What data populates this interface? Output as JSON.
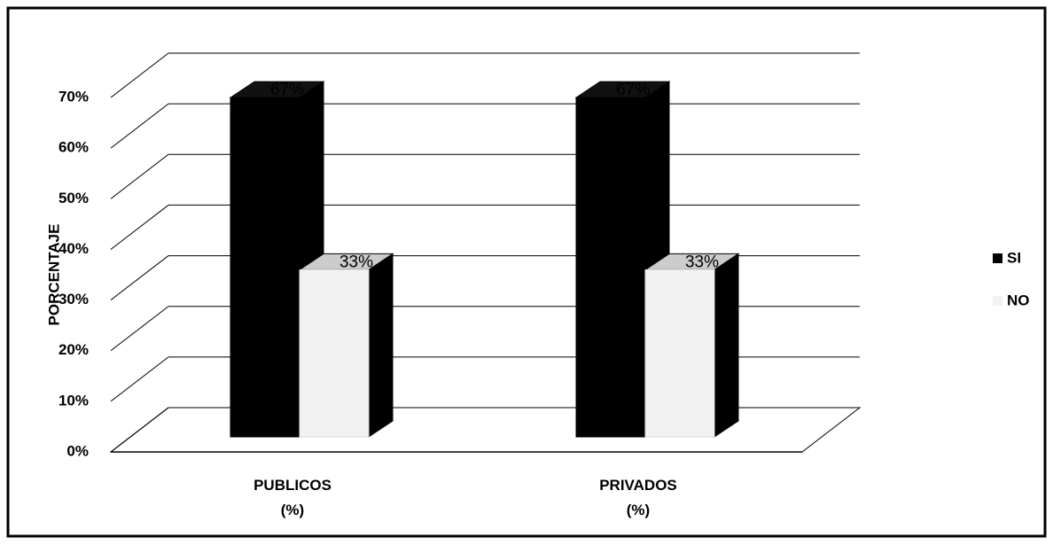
{
  "chart_data": {
    "type": "bar",
    "categories": [
      "PUBLICOS\n(%)",
      "PRIVADOS\n(%)"
    ],
    "series": [
      {
        "name": "SI",
        "color": "#000000",
        "values": [
          67,
          67
        ],
        "value_labels": [
          "67%",
          "67%"
        ]
      },
      {
        "name": "NO",
        "color": "#f2f2f2",
        "values": [
          33,
          33
        ],
        "value_labels": [
          "33%",
          "33%"
        ]
      }
    ],
    "ylabel": "PORCENTAJE",
    "ylim": [
      0,
      70
    ],
    "yticks": [
      {
        "value": 0,
        "label": "0%"
      },
      {
        "value": 10,
        "label": "10%"
      },
      {
        "value": 20,
        "label": "20%"
      },
      {
        "value": 30,
        "label": "30%"
      },
      {
        "value": 40,
        "label": "40%"
      },
      {
        "value": 50,
        "label": "50%"
      },
      {
        "value": 60,
        "label": "60%"
      },
      {
        "value": 70,
        "label": "70%"
      }
    ],
    "grid": true,
    "legend": "right"
  }
}
